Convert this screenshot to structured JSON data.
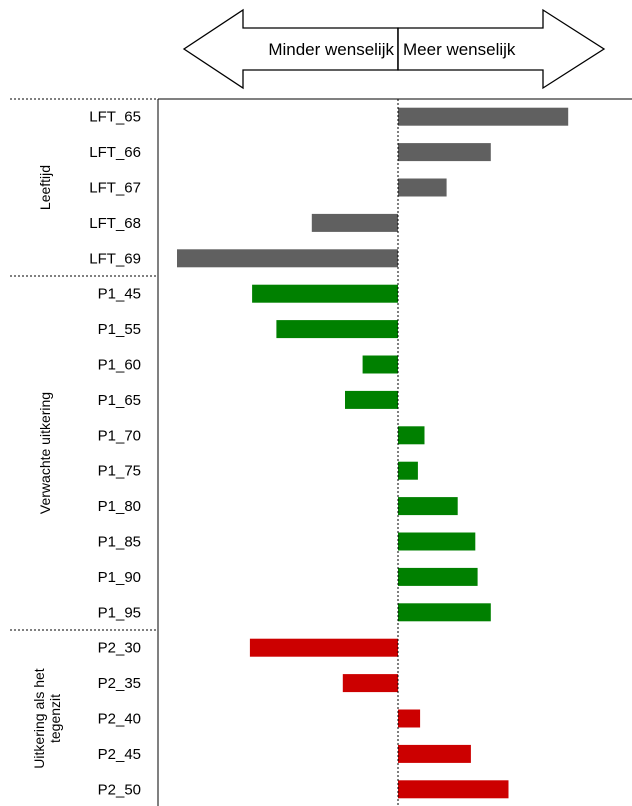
{
  "chart_data": {
    "type": "bar",
    "orientation": "horizontal",
    "arrow_labels": {
      "left": "Minder wenselijk",
      "right": "Meer wenselijk"
    },
    "xlim": [
      -1.0,
      0.75
    ],
    "groups": [
      {
        "name": "Leeftijd",
        "color": "#606060",
        "categories": [
          "LFT_65",
          "LFT_66",
          "LFT_67",
          "LFT_68",
          "LFT_69"
        ],
        "values": [
          0.77,
          0.42,
          0.22,
          -0.39,
          -1.0
        ]
      },
      {
        "name": "Verwachte uitkering",
        "color": "#008000",
        "categories": [
          "P1_45",
          "P1_55",
          "P1_60",
          "P1_65",
          "P1_70",
          "P1_75",
          "P1_80",
          "P1_85",
          "P1_90",
          "P1_95"
        ],
        "values": [
          -0.66,
          -0.55,
          -0.16,
          -0.24,
          0.12,
          0.09,
          0.27,
          0.35,
          0.36,
          0.42
        ]
      },
      {
        "name": "Uitkering als het tegenzit",
        "color": "#cc0000",
        "categories": [
          "P2_30",
          "P2_35",
          "P2_40",
          "P2_45",
          "P2_50"
        ],
        "values": [
          -0.67,
          -0.25,
          0.1,
          0.33,
          0.5
        ]
      }
    ],
    "grid": false,
    "legend": "none"
  }
}
